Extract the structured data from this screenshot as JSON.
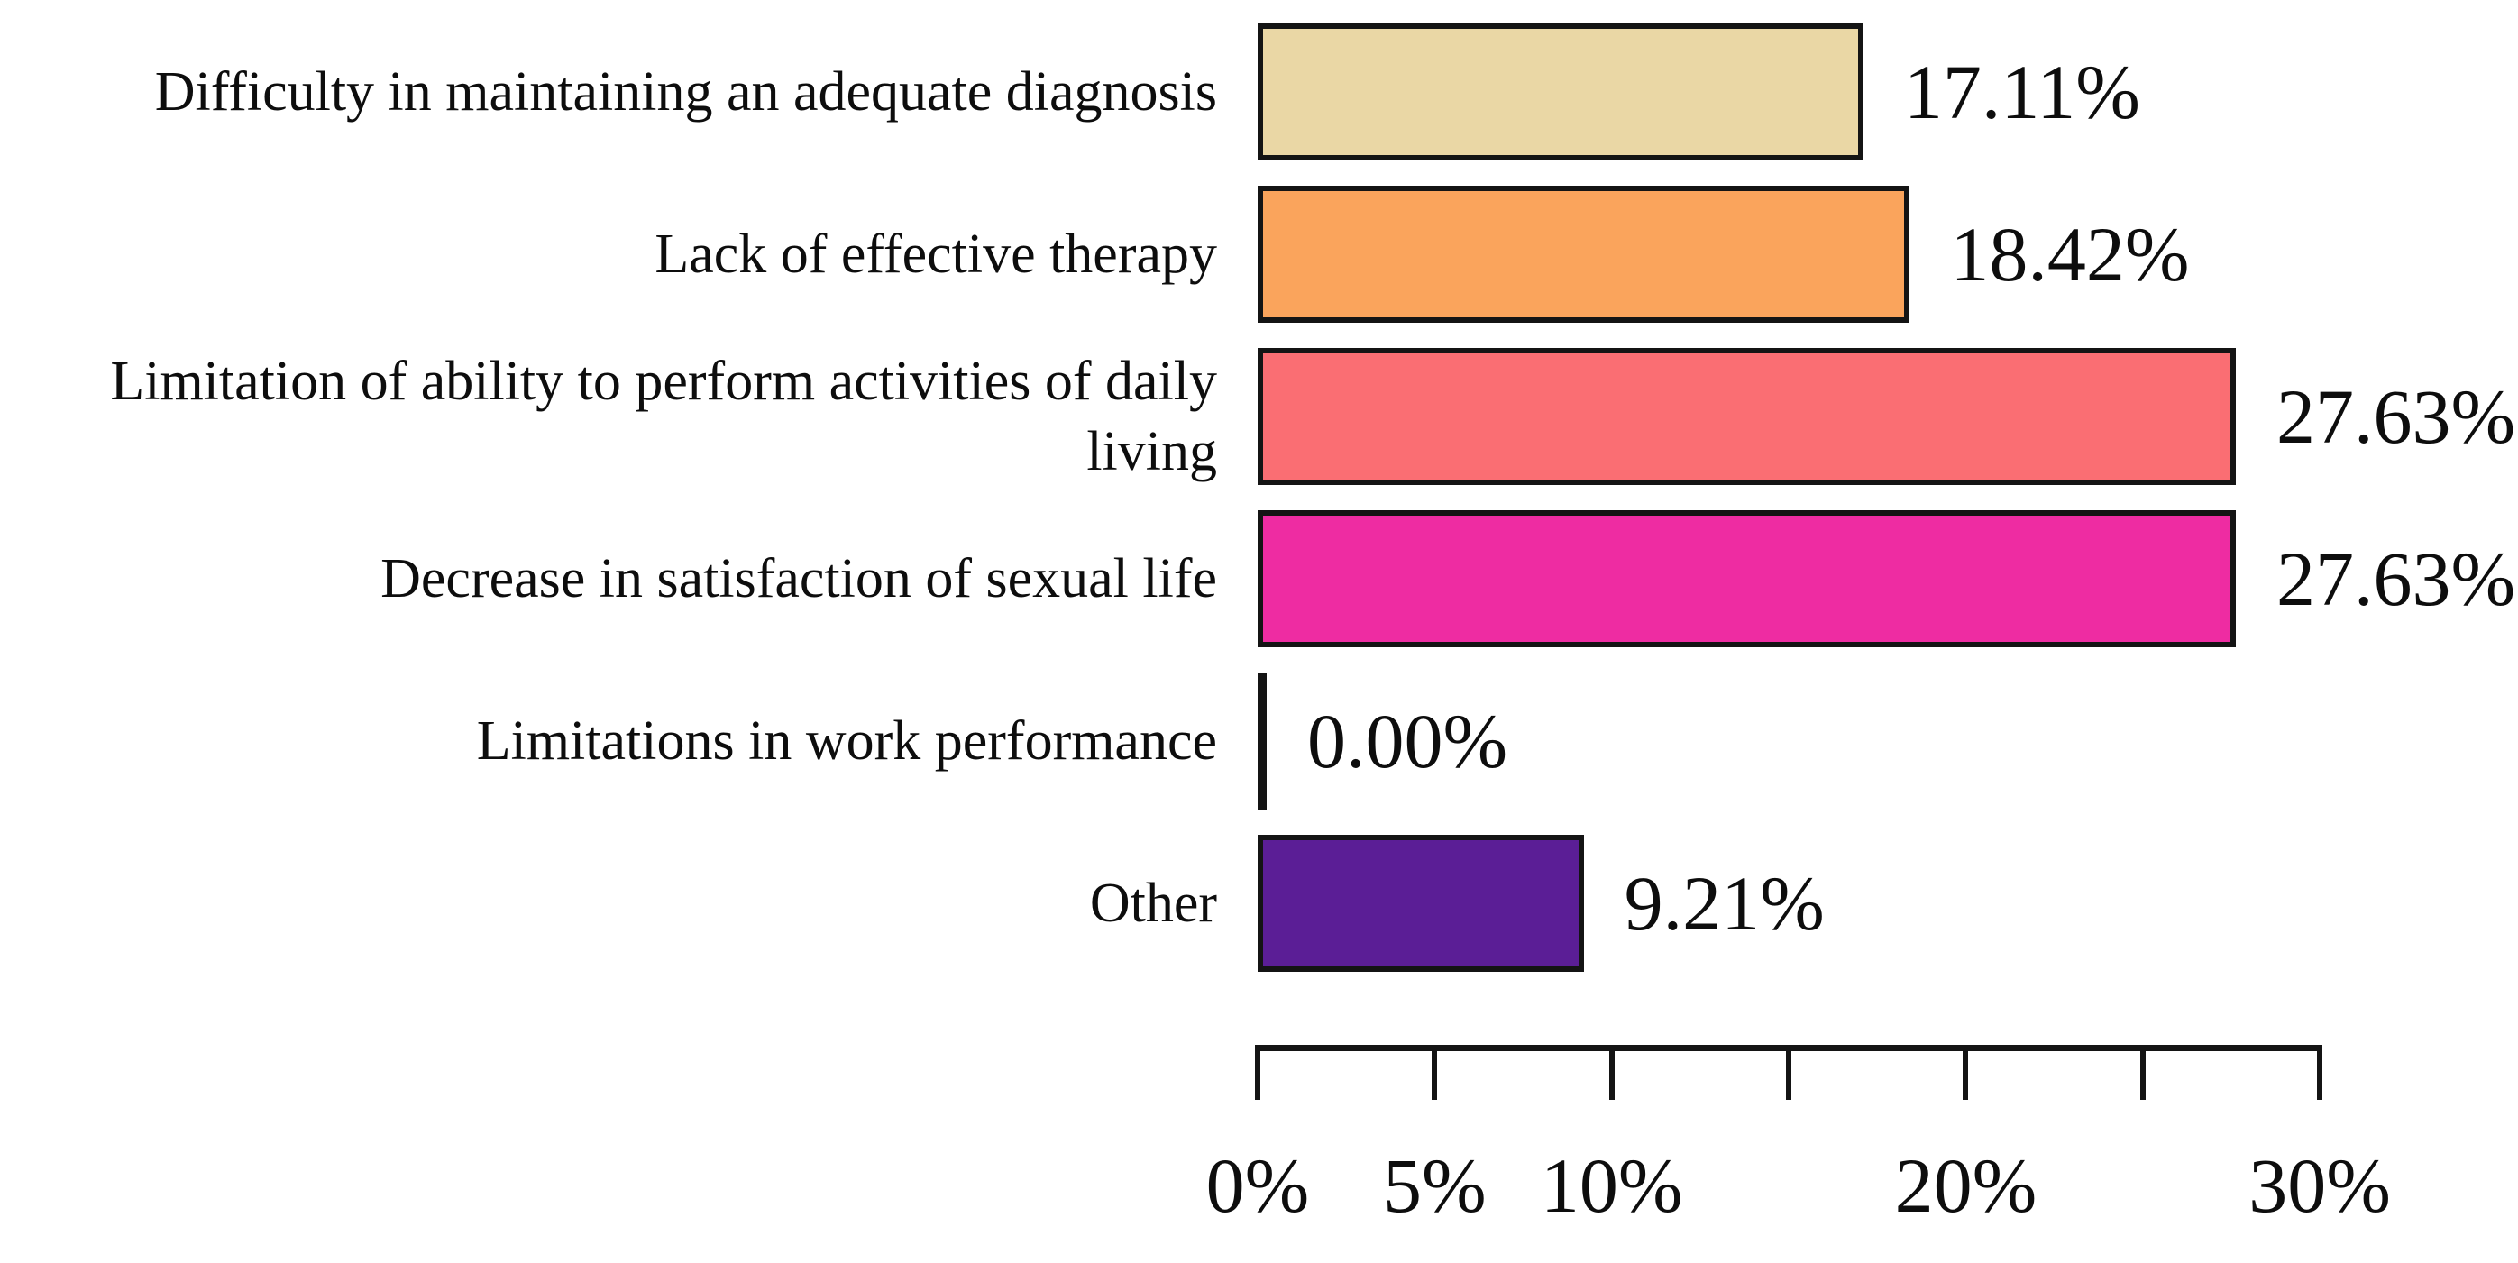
{
  "chart_data": {
    "type": "bar",
    "orientation": "horizontal",
    "title": "",
    "xlabel": "",
    "ylabel": "",
    "grid": false,
    "legend": false,
    "categories": [
      "Difficulty in maintaining an adequate diagnosis",
      "Lack of effective therapy",
      "Limitation of ability to perform activities of daily\nliving",
      "Decrease in satisfaction of sexual life",
      "Limitations in work performance",
      "Other"
    ],
    "values": [
      17.11,
      18.42,
      27.63,
      27.63,
      0,
      9.21
    ],
    "data_labels": [
      "17.11%",
      "18.42%",
      "27.63%",
      "27.63%",
      "0.00%",
      "9.21%"
    ],
    "bar_colors": [
      "#ead7a5",
      "#faa45c",
      "#fa6e73",
      "#ee2ca2",
      null,
      "#5b1e96"
    ],
    "bar_border_color": "#141414",
    "text_color": "#0d0d0d",
    "background_color": "#ffffff",
    "axis": {
      "xlim": [
        0,
        30
      ],
      "ticks": [
        0,
        5,
        10,
        15,
        20,
        25,
        30
      ],
      "tick_labels": [
        {
          "value": 0,
          "label": "0%"
        },
        {
          "value": 5,
          "label": "5%"
        },
        {
          "value": 10,
          "label": "10%"
        },
        {
          "value": 20,
          "label": "20%"
        },
        {
          "value": 30,
          "label": "30%"
        }
      ]
    }
  }
}
